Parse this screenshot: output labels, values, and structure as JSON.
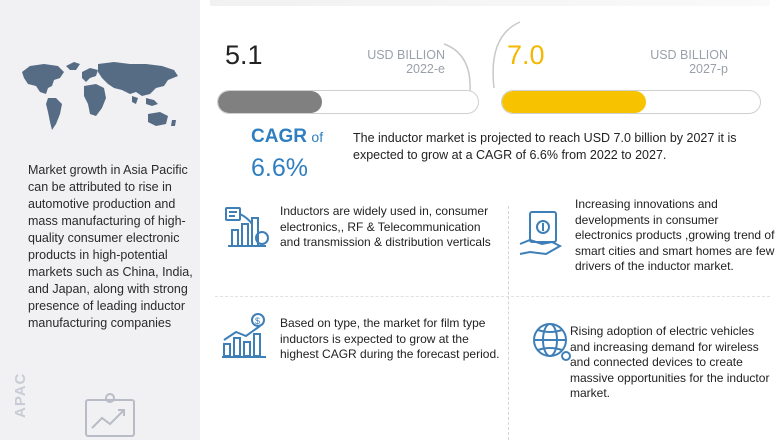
{
  "market_2022": {
    "value": "5.1",
    "unit": "USD BILLION",
    "year": "2022-e",
    "fill_fraction": 0.4
  },
  "market_2027": {
    "value": "7.0",
    "unit": "USD BILLION",
    "year": "2027-p",
    "fill_fraction": 0.56
  },
  "cagr": {
    "label": "CAGR",
    "of": "of",
    "value": "6.6%"
  },
  "summary": "The inductor market is projected to reach USD 7.0 billion by 2027 it is expected to grow at a CAGR of 6.6% from 2022 to 2027.",
  "left_panel": {
    "blurb": "Market growth in Asia Pacific can be attributed to rise in automotive production and mass manufacturing of high-quality consumer electronic products in high-potential markets such as China, India, and Japan, along with strong presence of leading inductor manufacturing companies",
    "region_label": "APAC"
  },
  "cards": [
    {
      "icon": "electronics-chart-icon",
      "text": "Inductors are widely used in, consumer electronics,, RF & Telecommunication and transmission & distribution verticals"
    },
    {
      "icon": "money-hand-icon",
      "text": "Increasing innovations and developments in consumer electronics products ,growing trend of smart cities and smart homes are few drivers of the inductor market."
    },
    {
      "icon": "growth-bar-chart-icon",
      "text": "Based on type,  the market for film type inductors is expected to grow at the highest CAGR during the forecast period."
    },
    {
      "icon": "global-network-icon",
      "text": "Rising adoption of electric vehicles and  increasing demand for wireless and connected devices to create massive opportunities for the inductor market."
    }
  ],
  "colors": {
    "accent_blue": "#2f7fc0",
    "accent_yellow": "#f7c200",
    "bar_gray": "#808080",
    "icon_blue": "#3f7fb8"
  }
}
